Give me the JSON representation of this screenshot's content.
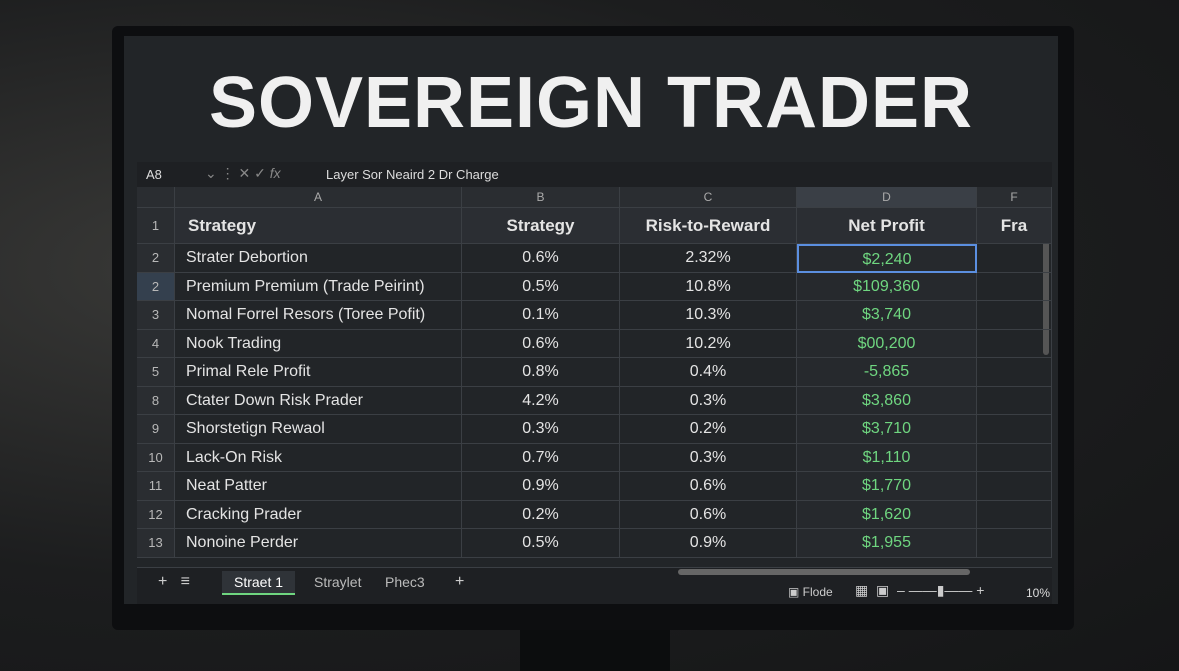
{
  "title": "SOVEREIGN TRADER",
  "formula_bar": {
    "cell_ref": "A8",
    "formula": "Layer Sor Neaird 2 Dr Charge"
  },
  "columns": [
    "A",
    "B",
    "C",
    "D",
    "F"
  ],
  "header_row": {
    "num": "1",
    "cells": [
      "Strategy",
      "Strategy",
      "Risk-to-Reward",
      "Net Profit",
      "Fra"
    ]
  },
  "rows": [
    {
      "num": "2",
      "cells": [
        "Strater Debortion",
        "0.6%",
        "2.32%",
        "$2,240"
      ]
    },
    {
      "num": "2",
      "cells": [
        "Premium Premium (Trade Peirint)",
        "0.5%",
        "10.8%",
        "$109,360"
      ]
    },
    {
      "num": "3",
      "cells": [
        "Nomal Forrel Resors (Toree Pofit)",
        "0.1%",
        "10.3%",
        "$3,740"
      ]
    },
    {
      "num": "4",
      "cells": [
        "Nook Trading",
        "0.6%",
        "10.2%",
        "$00,200"
      ]
    },
    {
      "num": "5",
      "cells": [
        "Primal Rele Profit",
        "0.8%",
        "0.4%",
        "-5,865"
      ]
    },
    {
      "num": "8",
      "cells": [
        "Ctater Down Risk Prader",
        "4.2%",
        "0.3%",
        "$3,860"
      ]
    },
    {
      "num": "9",
      "cells": [
        "Shorstetign Rewaol",
        "0.3%",
        "0.2%",
        "$3,710"
      ]
    },
    {
      "num": "10",
      "cells": [
        "Lack-On Risk",
        "0.7%",
        "0.3%",
        "$1,110"
      ]
    },
    {
      "num": "11",
      "cells": [
        "Neat Patter",
        "0.9%",
        "0.6%",
        "$1,770"
      ]
    },
    {
      "num": "12",
      "cells": [
        "Cracking Prader",
        "0.2%",
        "0.6%",
        "$1,620"
      ]
    },
    {
      "num": "13",
      "cells": [
        "Nonoine Perder",
        "0.5%",
        "0.9%",
        "$1,955"
      ]
    }
  ],
  "sheet_tabs": [
    "Straet 1",
    "Straylet",
    "Phec3"
  ],
  "status_bar": {
    "view": "Flode",
    "zoom": "10%"
  }
}
